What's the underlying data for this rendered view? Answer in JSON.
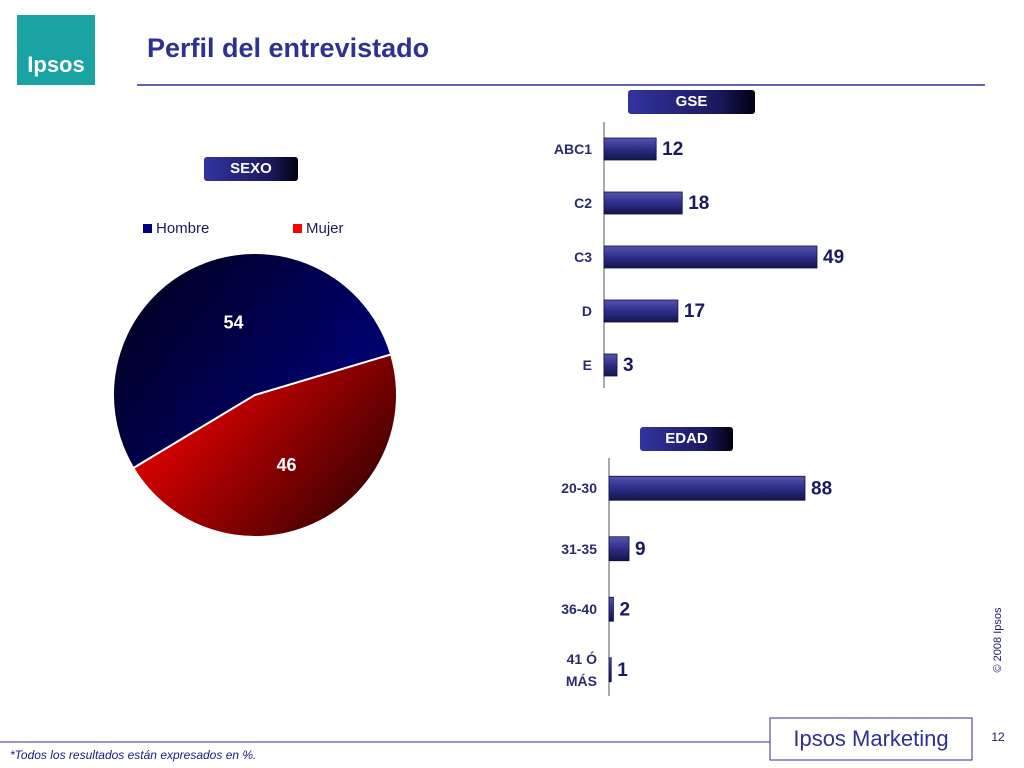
{
  "page": {
    "logo": "Ipsos",
    "title": "Perfil del entrevistado",
    "brand": "Ipsos Marketing",
    "footnote": "*Todos los resultados están expresados en %.",
    "copyright": "© 2008 Ipsos",
    "page_number": "12"
  },
  "chart_data": [
    {
      "type": "pie",
      "title": "SEXO",
      "categories": [
        "Hombre",
        "Mujer"
      ],
      "values": [
        54,
        46
      ],
      "colors": [
        "#000080",
        "#ff0000"
      ],
      "legend": "top"
    },
    {
      "type": "bar",
      "orientation": "horizontal",
      "title": "GSE",
      "categories": [
        "ABC1",
        "C2",
        "C3",
        "D",
        "E"
      ],
      "values": [
        12,
        18,
        49,
        17,
        3
      ],
      "color": "#2e2e8a"
    },
    {
      "type": "bar",
      "orientation": "horizontal",
      "title": "EDAD",
      "categories": [
        "20-30",
        "31-35",
        "36-40",
        "41 Ó MÁS"
      ],
      "values": [
        88,
        9,
        2,
        1
      ],
      "color": "#2e2e8a"
    }
  ]
}
